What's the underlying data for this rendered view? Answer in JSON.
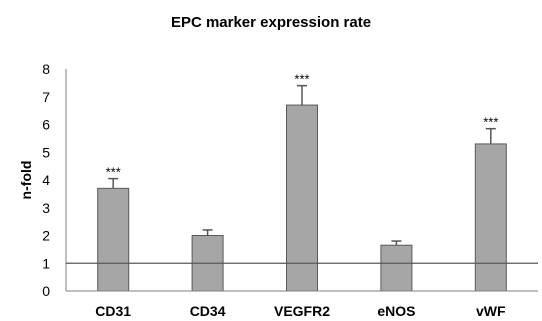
{
  "chart_data": {
    "type": "bar",
    "title": "EPC marker expression rate",
    "xlabel": "",
    "ylabel": "n-fold",
    "categories": [
      "CD31",
      "CD34",
      "VEGFR2",
      "eNOS",
      "vWF"
    ],
    "values": [
      3.7,
      2.0,
      6.7,
      1.65,
      5.3
    ],
    "errors": [
      0.35,
      0.2,
      0.7,
      0.15,
      0.55
    ],
    "annotations": [
      "***",
      "",
      "***",
      "",
      "***"
    ],
    "reference_line": 1,
    "ylim": [
      0,
      8
    ],
    "yticks": [
      "0",
      "1",
      "2",
      "3",
      "4",
      "5",
      "6",
      "7",
      "8"
    ],
    "grid": false,
    "legend": "none",
    "colors": {
      "bar": "#a6a6a6",
      "bar_stroke": "#5a5a5a",
      "axis": "#7f7f7f",
      "reference": "#595959"
    }
  }
}
